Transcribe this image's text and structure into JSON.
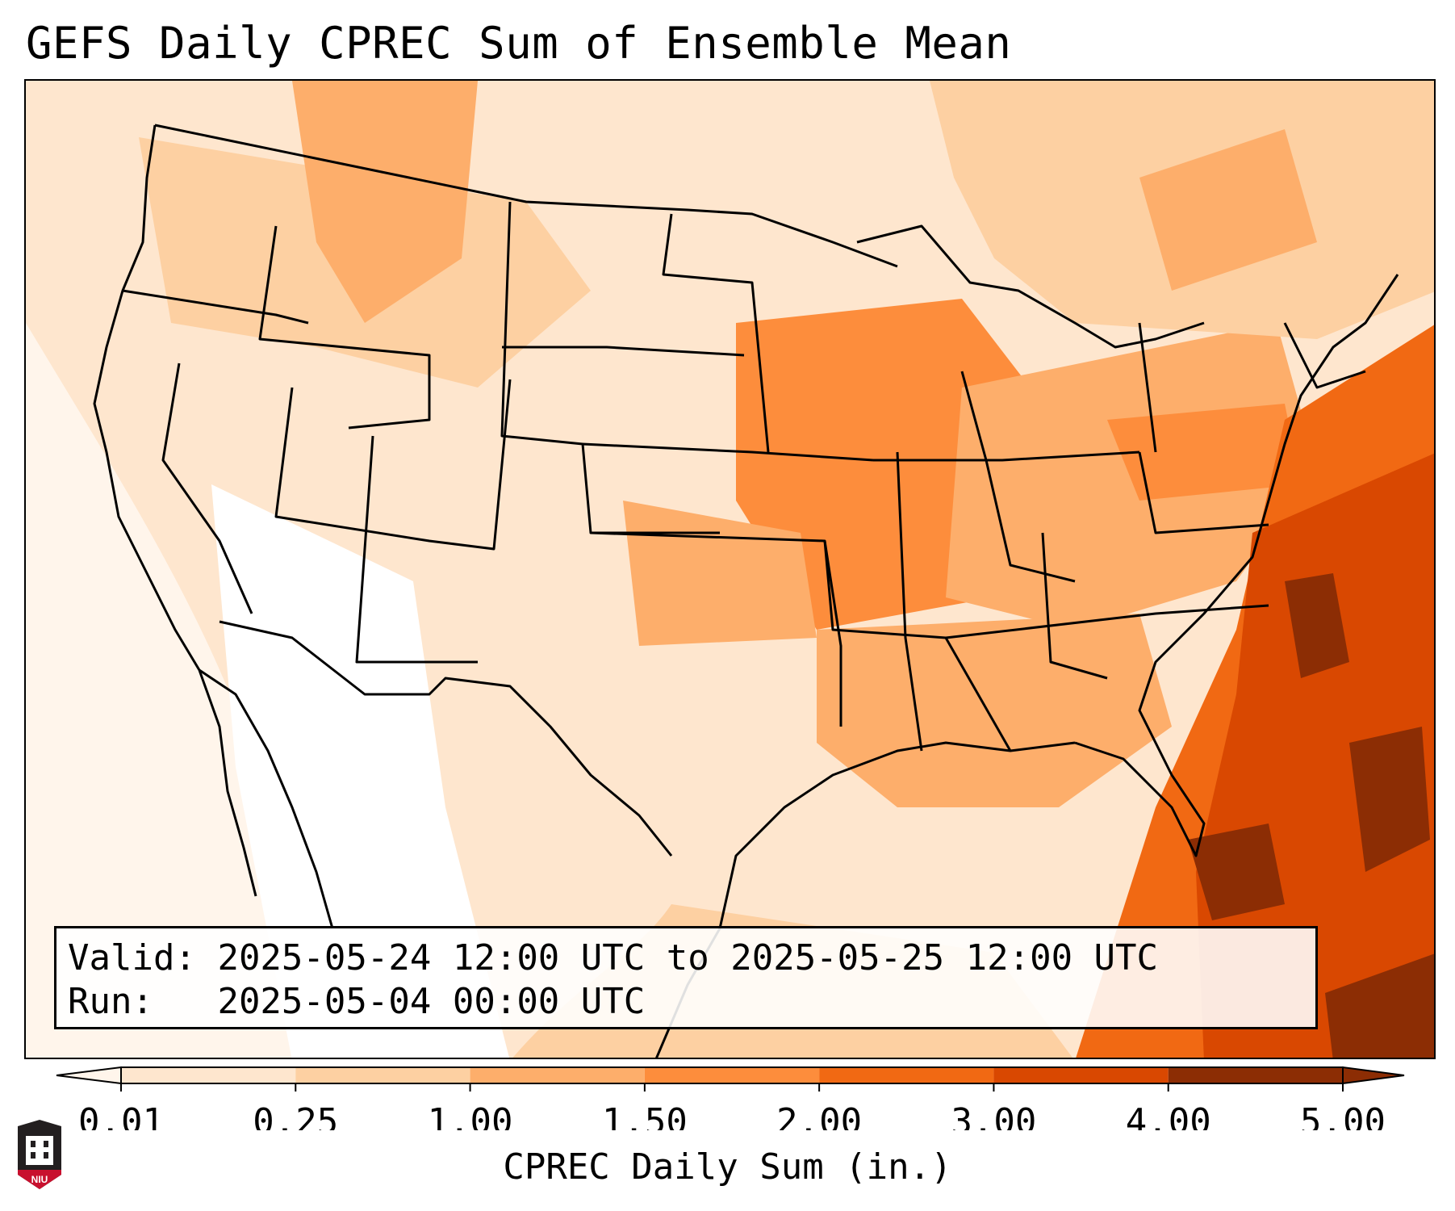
{
  "title": "GEFS Daily CPREC Sum of Ensemble Mean",
  "info": {
    "valid_label": "Valid:",
    "valid_value": "2025-05-24 12:00 UTC to 2025-05-25 12:00 UTC",
    "run_label": "Run:",
    "run_value": "2025-05-04 00:00 UTC"
  },
  "colorbar": {
    "label": "CPREC Daily Sum (in.)",
    "ticks": [
      "0.01",
      "0.25",
      "1.00",
      "1.50",
      "2.00",
      "3.00",
      "4.00",
      "5.00"
    ],
    "colors": [
      "#fff5eb",
      "#fee6ce",
      "#fdd0a2",
      "#fdae6b",
      "#fd8d3c",
      "#f16913",
      "#d94801",
      "#8c2d04"
    ],
    "extend": "both"
  },
  "logo": {
    "text": "NIU",
    "color": "#c8102e"
  },
  "map": {
    "projection": "Lambert Conformal (CONUS)",
    "outline_color": "#000000",
    "ocean_color": "#ffffff"
  }
}
